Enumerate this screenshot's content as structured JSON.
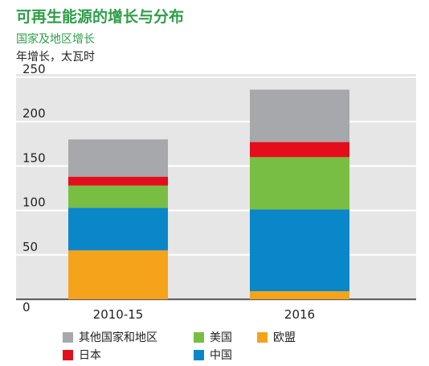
{
  "header": {
    "title": "可再生能源的增长与分布",
    "subtitle": "国家及地区增长",
    "unit": "年增长，太瓦时"
  },
  "chart_data": {
    "type": "bar",
    "stacked": true,
    "title": "可再生能源的增长与分布",
    "subtitle": "国家及地区增长",
    "ylabel": "年增长，太瓦时",
    "categories": [
      "2010-15",
      "2016"
    ],
    "ylim": [
      0,
      250
    ],
    "yticks": [
      0,
      50,
      100,
      150,
      200,
      250
    ],
    "grid": true,
    "legend_position": "bottom",
    "series": [
      {
        "name": "欧盟",
        "color": "#f5a31a",
        "values": [
          55,
          9
        ]
      },
      {
        "name": "中国",
        "color": "#0a87c9",
        "values": [
          48,
          92
        ]
      },
      {
        "name": "美国",
        "color": "#78be43",
        "values": [
          25,
          59
        ]
      },
      {
        "name": "日本",
        "color": "#e30d1b",
        "values": [
          10,
          17
        ]
      },
      {
        "name": "其他国家和地区",
        "color": "#a6a8ab",
        "values": [
          42,
          59
        ]
      }
    ]
  },
  "legend": [
    {
      "label": "其他国家和地区",
      "color": "#a6a8ab"
    },
    {
      "label": "美国",
      "color": "#78be43"
    },
    {
      "label": "欧盟",
      "color": "#f5a31a"
    },
    {
      "label": "日本",
      "color": "#e30d1b"
    },
    {
      "label": "中国",
      "color": "#0a87c9"
    }
  ]
}
